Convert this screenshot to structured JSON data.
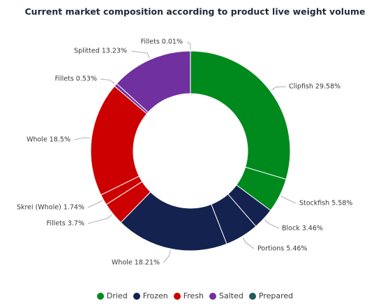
{
  "chart_data": {
    "type": "donut",
    "title": "Current market composition according to product live weight volume",
    "legend_position": "bottom",
    "categories": [
      {
        "name": "Dried",
        "color": "#008a1e"
      },
      {
        "name": "Frozen",
        "color": "#13224e"
      },
      {
        "name": "Fresh",
        "color": "#cc0000"
      },
      {
        "name": "Salted",
        "color": "#7030a0"
      },
      {
        "name": "Prepared",
        "color": "#1f5c5c"
      }
    ],
    "slices": [
      {
        "label": "Clipfish 29.58%",
        "value": 29.58,
        "category": "Dried"
      },
      {
        "label": "Stockfish 5.58%",
        "value": 5.58,
        "category": "Dried"
      },
      {
        "label": "Block 3.46%",
        "value": 3.46,
        "category": "Frozen"
      },
      {
        "label": "Portions 5.46%",
        "value": 5.46,
        "category": "Frozen"
      },
      {
        "label": "Whole 18.21%",
        "value": 18.21,
        "category": "Frozen"
      },
      {
        "label": "Fillets 3.7%",
        "value": 3.7,
        "category": "Fresh"
      },
      {
        "label": "Skrei (Whole) 1.74%",
        "value": 1.74,
        "category": "Fresh"
      },
      {
        "label": "Whole 18.5%",
        "value": 18.5,
        "category": "Fresh"
      },
      {
        "label": "Fillets 0.53%",
        "value": 0.53,
        "category": "Salted"
      },
      {
        "label": "Splitted 13.23%",
        "value": 13.23,
        "category": "Salted"
      },
      {
        "label": "Fillets 0.01%",
        "value": 0.01,
        "category": "Prepared"
      }
    ]
  }
}
